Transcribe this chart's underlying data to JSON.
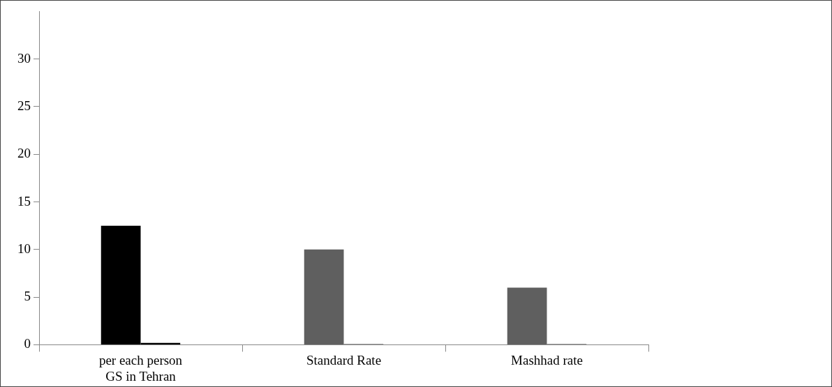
{
  "chart_data": {
    "type": "bar",
    "categories": [
      "per each person\nGS in Tehran",
      "Standard Rate",
      "Mashhad rate"
    ],
    "series": [
      {
        "colors": [
          "#000000",
          "#5f5f5f",
          "#5f5f5f"
        ],
        "values": [
          12.5,
          10,
          6
        ]
      },
      {
        "colors": [
          "#000000",
          "#9a9a9a",
          "#9a9a9a"
        ],
        "values": [
          0.2,
          0.1,
          0.1
        ]
      }
    ],
    "ylim": [
      0,
      35
    ],
    "yticks": [
      0,
      5,
      10,
      15,
      20,
      25,
      30
    ],
    "grid": false,
    "legend": false
  }
}
